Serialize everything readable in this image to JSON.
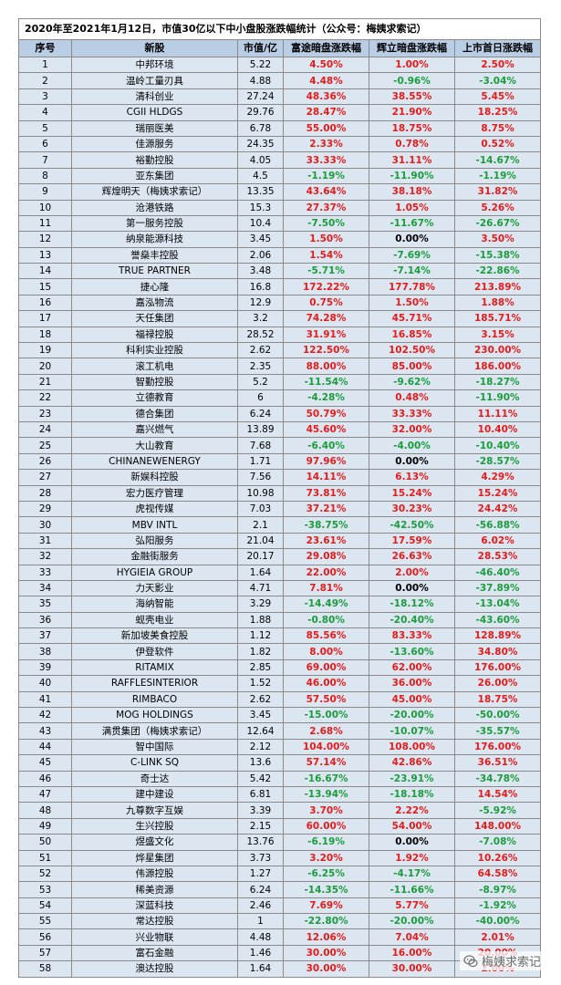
{
  "title": "2020年至2021年1月12日，市值30亿以下中小盘股涨跌幅统计（公众号：梅姨求索记）",
  "headers": [
    "序号",
    "新股",
    "市值/亿",
    "富途暗盘涨跌幅",
    "辉立暗盘涨跌幅",
    "上市首日涨跌幅"
  ],
  "rows": [
    {
      "no": "1",
      "name": "中邦环境",
      "cap": "5.22",
      "futu": "4.50%",
      "phillip": "1.00%",
      "first_day": "2.50%"
    },
    {
      "no": "2",
      "name": "温岭工量刃具",
      "cap": "4.88",
      "futu": "4.48%",
      "phillip": "-0.96%",
      "first_day": "-3.04%"
    },
    {
      "no": "3",
      "name": "清科创业",
      "cap": "27.24",
      "futu": "48.36%",
      "phillip": "38.55%",
      "first_day": "5.45%"
    },
    {
      "no": "4",
      "name": "CGII HLDGS",
      "cap": "29.76",
      "futu": "28.47%",
      "phillip": "21.90%",
      "first_day": "18.25%"
    },
    {
      "no": "5",
      "name": "瑞丽医美",
      "cap": "6.78",
      "futu": "55.00%",
      "phillip": "18.75%",
      "first_day": "8.75%"
    },
    {
      "no": "6",
      "name": "佳源服务",
      "cap": "24.35",
      "futu": "2.33%",
      "phillip": "0.78%",
      "first_day": "0.52%"
    },
    {
      "no": "7",
      "name": "裕勤控股",
      "cap": "4.05",
      "futu": "33.33%",
      "phillip": "31.11%",
      "first_day": "-14.67%"
    },
    {
      "no": "8",
      "name": "亚东集团",
      "cap": "4.5",
      "futu": "-1.19%",
      "phillip": "-11.90%",
      "first_day": "-1.19%"
    },
    {
      "no": "9",
      "name": "辉煌明天（梅姨求索记）",
      "cap": "13.35",
      "futu": "43.64%",
      "phillip": "38.18%",
      "first_day": "31.82%"
    },
    {
      "no": "10",
      "name": "沧港铁路",
      "cap": "15.3",
      "futu": "27.37%",
      "phillip": "1.05%",
      "first_day": "5.26%"
    },
    {
      "no": "11",
      "name": "第一服务控股",
      "cap": "10.4",
      "futu": "-7.50%",
      "phillip": "-11.67%",
      "first_day": "-26.67%"
    },
    {
      "no": "12",
      "name": "纳泉能源科技",
      "cap": "3.45",
      "futu": "1.50%",
      "phillip": "0.00%",
      "first_day": "3.50%"
    },
    {
      "no": "13",
      "name": "誉燊丰控股",
      "cap": "2.06",
      "futu": "1.54%",
      "phillip": "-7.69%",
      "first_day": "-15.38%"
    },
    {
      "no": "14",
      "name": "TRUE PARTNER",
      "cap": "3.48",
      "futu": "-5.71%",
      "phillip": "-7.14%",
      "first_day": "-22.86%"
    },
    {
      "no": "15",
      "name": "捷心隆",
      "cap": "16.8",
      "futu": "172.22%",
      "phillip": "177.78%",
      "first_day": "213.89%"
    },
    {
      "no": "16",
      "name": "嘉泓物流",
      "cap": "12.9",
      "futu": "0.75%",
      "phillip": "1.50%",
      "first_day": "1.88%"
    },
    {
      "no": "17",
      "name": "天任集团",
      "cap": "3.2",
      "futu": "74.28%",
      "phillip": "45.71%",
      "first_day": "185.71%"
    },
    {
      "no": "18",
      "name": "福禄控股",
      "cap": "28.52",
      "futu": "31.91%",
      "phillip": "16.85%",
      "first_day": "3.15%"
    },
    {
      "no": "19",
      "name": "科利实业控股",
      "cap": "2.62",
      "futu": "122.50%",
      "phillip": "102.50%",
      "first_day": "230.00%"
    },
    {
      "no": "20",
      "name": "滚工机电",
      "cap": "2.35",
      "futu": "88.00%",
      "phillip": "85.00%",
      "first_day": "186.00%"
    },
    {
      "no": "21",
      "name": "智勤控股",
      "cap": "5.2",
      "futu": "-11.54%",
      "phillip": "-9.62%",
      "first_day": "-18.27%"
    },
    {
      "no": "22",
      "name": "立德教育",
      "cap": "6",
      "futu": "-4.28%",
      "phillip": "0.48%",
      "first_day": "-11.90%"
    },
    {
      "no": "23",
      "name": "德合集团",
      "cap": "6.24",
      "futu": "50.79%",
      "phillip": "33.33%",
      "first_day": "11.11%"
    },
    {
      "no": "24",
      "name": "嘉兴燃气",
      "cap": "13.89",
      "futu": "45.60%",
      "phillip": "32.00%",
      "first_day": "10.40%"
    },
    {
      "no": "25",
      "name": "大山教育",
      "cap": "7.68",
      "futu": "-6.40%",
      "phillip": "-4.00%",
      "first_day": "-10.40%"
    },
    {
      "no": "26",
      "name": "CHINANEWENERGY",
      "cap": "1.71",
      "futu": "97.96%",
      "phillip": "0.00%",
      "first_day": "-28.57%"
    },
    {
      "no": "27",
      "name": "新娱科控股",
      "cap": "7.56",
      "futu": "14.11%",
      "phillip": "6.13%",
      "first_day": "4.29%"
    },
    {
      "no": "28",
      "name": "宏力医疗管理",
      "cap": "10.98",
      "futu": "73.81%",
      "phillip": "15.24%",
      "first_day": "15.24%"
    },
    {
      "no": "29",
      "name": "虎视传媒",
      "cap": "7.03",
      "futu": "37.21%",
      "phillip": "30.23%",
      "first_day": "24.42%"
    },
    {
      "no": "30",
      "name": "MBV INTL",
      "cap": "2.1",
      "futu": "-38.75%",
      "phillip": "-42.50%",
      "first_day": "-56.88%"
    },
    {
      "no": "31",
      "name": "弘阳服务",
      "cap": "21.04",
      "futu": "23.61%",
      "phillip": "17.59%",
      "first_day": "6.02%"
    },
    {
      "no": "32",
      "name": "金融街服务",
      "cap": "20.17",
      "futu": "29.08%",
      "phillip": "26.63%",
      "first_day": "28.53%"
    },
    {
      "no": "33",
      "name": "HYGIEIA GROUP",
      "cap": "1.64",
      "futu": "22.00%",
      "phillip": "2.00%",
      "first_day": "-46.40%"
    },
    {
      "no": "34",
      "name": "力天影业",
      "cap": "4.71",
      "futu": "7.81%",
      "phillip": "0.00%",
      "first_day": "-37.89%"
    },
    {
      "no": "35",
      "name": "海纳智能",
      "cap": "3.29",
      "futu": "-14.49%",
      "phillip": "-18.12%",
      "first_day": "-13.04%"
    },
    {
      "no": "36",
      "name": "蚬壳电业",
      "cap": "1.88",
      "futu": "-0.80%",
      "phillip": "-20.40%",
      "first_day": "-43.60%"
    },
    {
      "no": "37",
      "name": "新加坡美食控股",
      "cap": "1.12",
      "futu": "85.56%",
      "phillip": "83.33%",
      "first_day": "128.89%"
    },
    {
      "no": "38",
      "name": "伊登软件",
      "cap": "1.82",
      "futu": "8.00%",
      "phillip": "-13.60%",
      "first_day": "34.80%"
    },
    {
      "no": "39",
      "name": "RITAMIX",
      "cap": "2.85",
      "futu": "69.00%",
      "phillip": "62.00%",
      "first_day": "176.00%"
    },
    {
      "no": "40",
      "name": "RAFFLESINTERIOR",
      "cap": "1.52",
      "futu": "46.00%",
      "phillip": "36.00%",
      "first_day": "26.00%"
    },
    {
      "no": "41",
      "name": "RIMBACO",
      "cap": "2.62",
      "futu": "57.50%",
      "phillip": "45.00%",
      "first_day": "18.75%"
    },
    {
      "no": "42",
      "name": "MOG HOLDINGS",
      "cap": "3.45",
      "futu": "-15.00%",
      "phillip": "-20.00%",
      "first_day": "-50.00%"
    },
    {
      "no": "43",
      "name": "满贯集团（梅姨求索记）",
      "cap": "12.64",
      "futu": "2.68%",
      "phillip": "-10.07%",
      "first_day": "-35.57%"
    },
    {
      "no": "44",
      "name": "智中国际",
      "cap": "2.12",
      "futu": "104.00%",
      "phillip": "108.00%",
      "first_day": "176.00%"
    },
    {
      "no": "45",
      "name": "C-LINK SQ",
      "cap": "13.6",
      "futu": "57.14%",
      "phillip": "42.86%",
      "first_day": "36.51%"
    },
    {
      "no": "46",
      "name": "奇士达",
      "cap": "5.42",
      "futu": "-16.67%",
      "phillip": "-23.91%",
      "first_day": "-34.78%"
    },
    {
      "no": "47",
      "name": "建中建设",
      "cap": "6.81",
      "futu": "-13.94%",
      "phillip": "-18.18%",
      "first_day": "14.54%"
    },
    {
      "no": "48",
      "name": "九尊数字互娱",
      "cap": "3.39",
      "futu": "3.70%",
      "phillip": "2.22%",
      "first_day": "-5.92%"
    },
    {
      "no": "49",
      "name": "生兴控股",
      "cap": "2.15",
      "futu": "60.00%",
      "phillip": "54.00%",
      "first_day": "148.00%"
    },
    {
      "no": "50",
      "name": "煜盛文化",
      "cap": "13.76",
      "futu": "-6.19%",
      "phillip": "0.00%",
      "first_day": "-7.08%"
    },
    {
      "no": "51",
      "name": "烨星集团",
      "cap": "3.73",
      "futu": "3.20%",
      "phillip": "1.92%",
      "first_day": "10.26%"
    },
    {
      "no": "52",
      "name": "伟源控股",
      "cap": "1.27",
      "futu": "-6.25%",
      "phillip": "-4.17%",
      "first_day": "64.58%"
    },
    {
      "no": "53",
      "name": "稀美资源",
      "cap": "6.24",
      "futu": "-14.35%",
      "phillip": "-11.66%",
      "first_day": "-8.97%"
    },
    {
      "no": "54",
      "name": "深蓝科技",
      "cap": "2.46",
      "futu": "7.69%",
      "phillip": "5.77%",
      "first_day": "-1.92%"
    },
    {
      "no": "55",
      "name": "常达控股",
      "cap": "1",
      "futu": "-22.80%",
      "phillip": "-20.00%",
      "first_day": "-40.00%"
    },
    {
      "no": "56",
      "name": "兴业物联",
      "cap": "4.48",
      "futu": "12.06%",
      "phillip": "7.04%",
      "first_day": "2.01%"
    },
    {
      "no": "57",
      "name": "富石金融",
      "cap": "1.46",
      "futu": "30.00%",
      "phillip": "16.00%",
      "first_day": "20.00%"
    },
    {
      "no": "58",
      "name": "澳达控股",
      "cap": "1.64",
      "futu": "30.00%",
      "phillip": "30.00%",
      "first_day": "2.00%"
    }
  ],
  "watermark": "梅姨求索记",
  "colors": {
    "positive": "#e31c1c",
    "negative": "#1a9c3c",
    "header_bg": "#b9cde5",
    "row_bg": "#dce6f1"
  },
  "icons": {
    "watermark": "wechat-icon"
  }
}
